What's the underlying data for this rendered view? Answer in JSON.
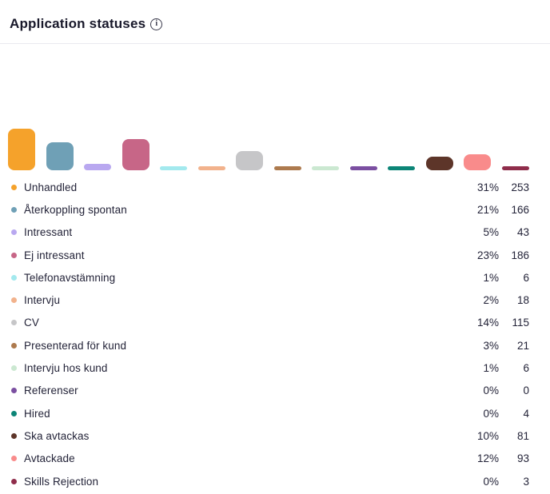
{
  "header": {
    "title": "Application statuses",
    "info_icon": "info-circle-icon",
    "info_glyph": "i"
  },
  "chart_data": {
    "type": "bar",
    "title": "Application statuses",
    "unit": "percent",
    "ylim": [
      0,
      100
    ],
    "grid": false,
    "legend_position": "below",
    "items": [
      {
        "label": "Unhandled",
        "value": 31,
        "percent_label": "31%",
        "count": 253,
        "color": "#F5A22B"
      },
      {
        "label": "Återkoppling spontan",
        "value": 21,
        "percent_label": "21%",
        "count": 166,
        "color": "#6FA0B6"
      },
      {
        "label": "Intressant",
        "value": 5,
        "percent_label": "5%",
        "count": 43,
        "color": "#B9A8F0"
      },
      {
        "label": "Ej intressant",
        "value": 23,
        "percent_label": "23%",
        "count": 186,
        "color": "#C76687"
      },
      {
        "label": "Telefonavstämning",
        "value": 1,
        "percent_label": "1%",
        "count": 6,
        "color": "#A3E9EE"
      },
      {
        "label": "Intervju",
        "value": 2,
        "percent_label": "2%",
        "count": 18,
        "color": "#F2B28C"
      },
      {
        "label": "CV",
        "value": 14,
        "percent_label": "14%",
        "count": 115,
        "color": "#C6C6C8"
      },
      {
        "label": "Presenterad för kund",
        "value": 3,
        "percent_label": "3%",
        "count": 21,
        "color": "#AD7A4E"
      },
      {
        "label": "Intervju hos kund",
        "value": 1,
        "percent_label": "1%",
        "count": 6,
        "color": "#CBE8D1"
      },
      {
        "label": "Referenser",
        "value": 0,
        "percent_label": "0%",
        "count": 0,
        "color": "#7B4FA1"
      },
      {
        "label": "Hired",
        "value": 0,
        "percent_label": "0%",
        "count": 4,
        "color": "#0C8577"
      },
      {
        "label": "Ska avtackas",
        "value": 10,
        "percent_label": "10%",
        "count": 81,
        "color": "#5D3529"
      },
      {
        "label": "Avtackade",
        "value": 12,
        "percent_label": "12%",
        "count": 93,
        "color": "#F98B8B"
      },
      {
        "label": "Skills Rejection",
        "value": 0,
        "percent_label": "0%",
        "count": 3,
        "color": "#8F2D4B"
      }
    ]
  }
}
